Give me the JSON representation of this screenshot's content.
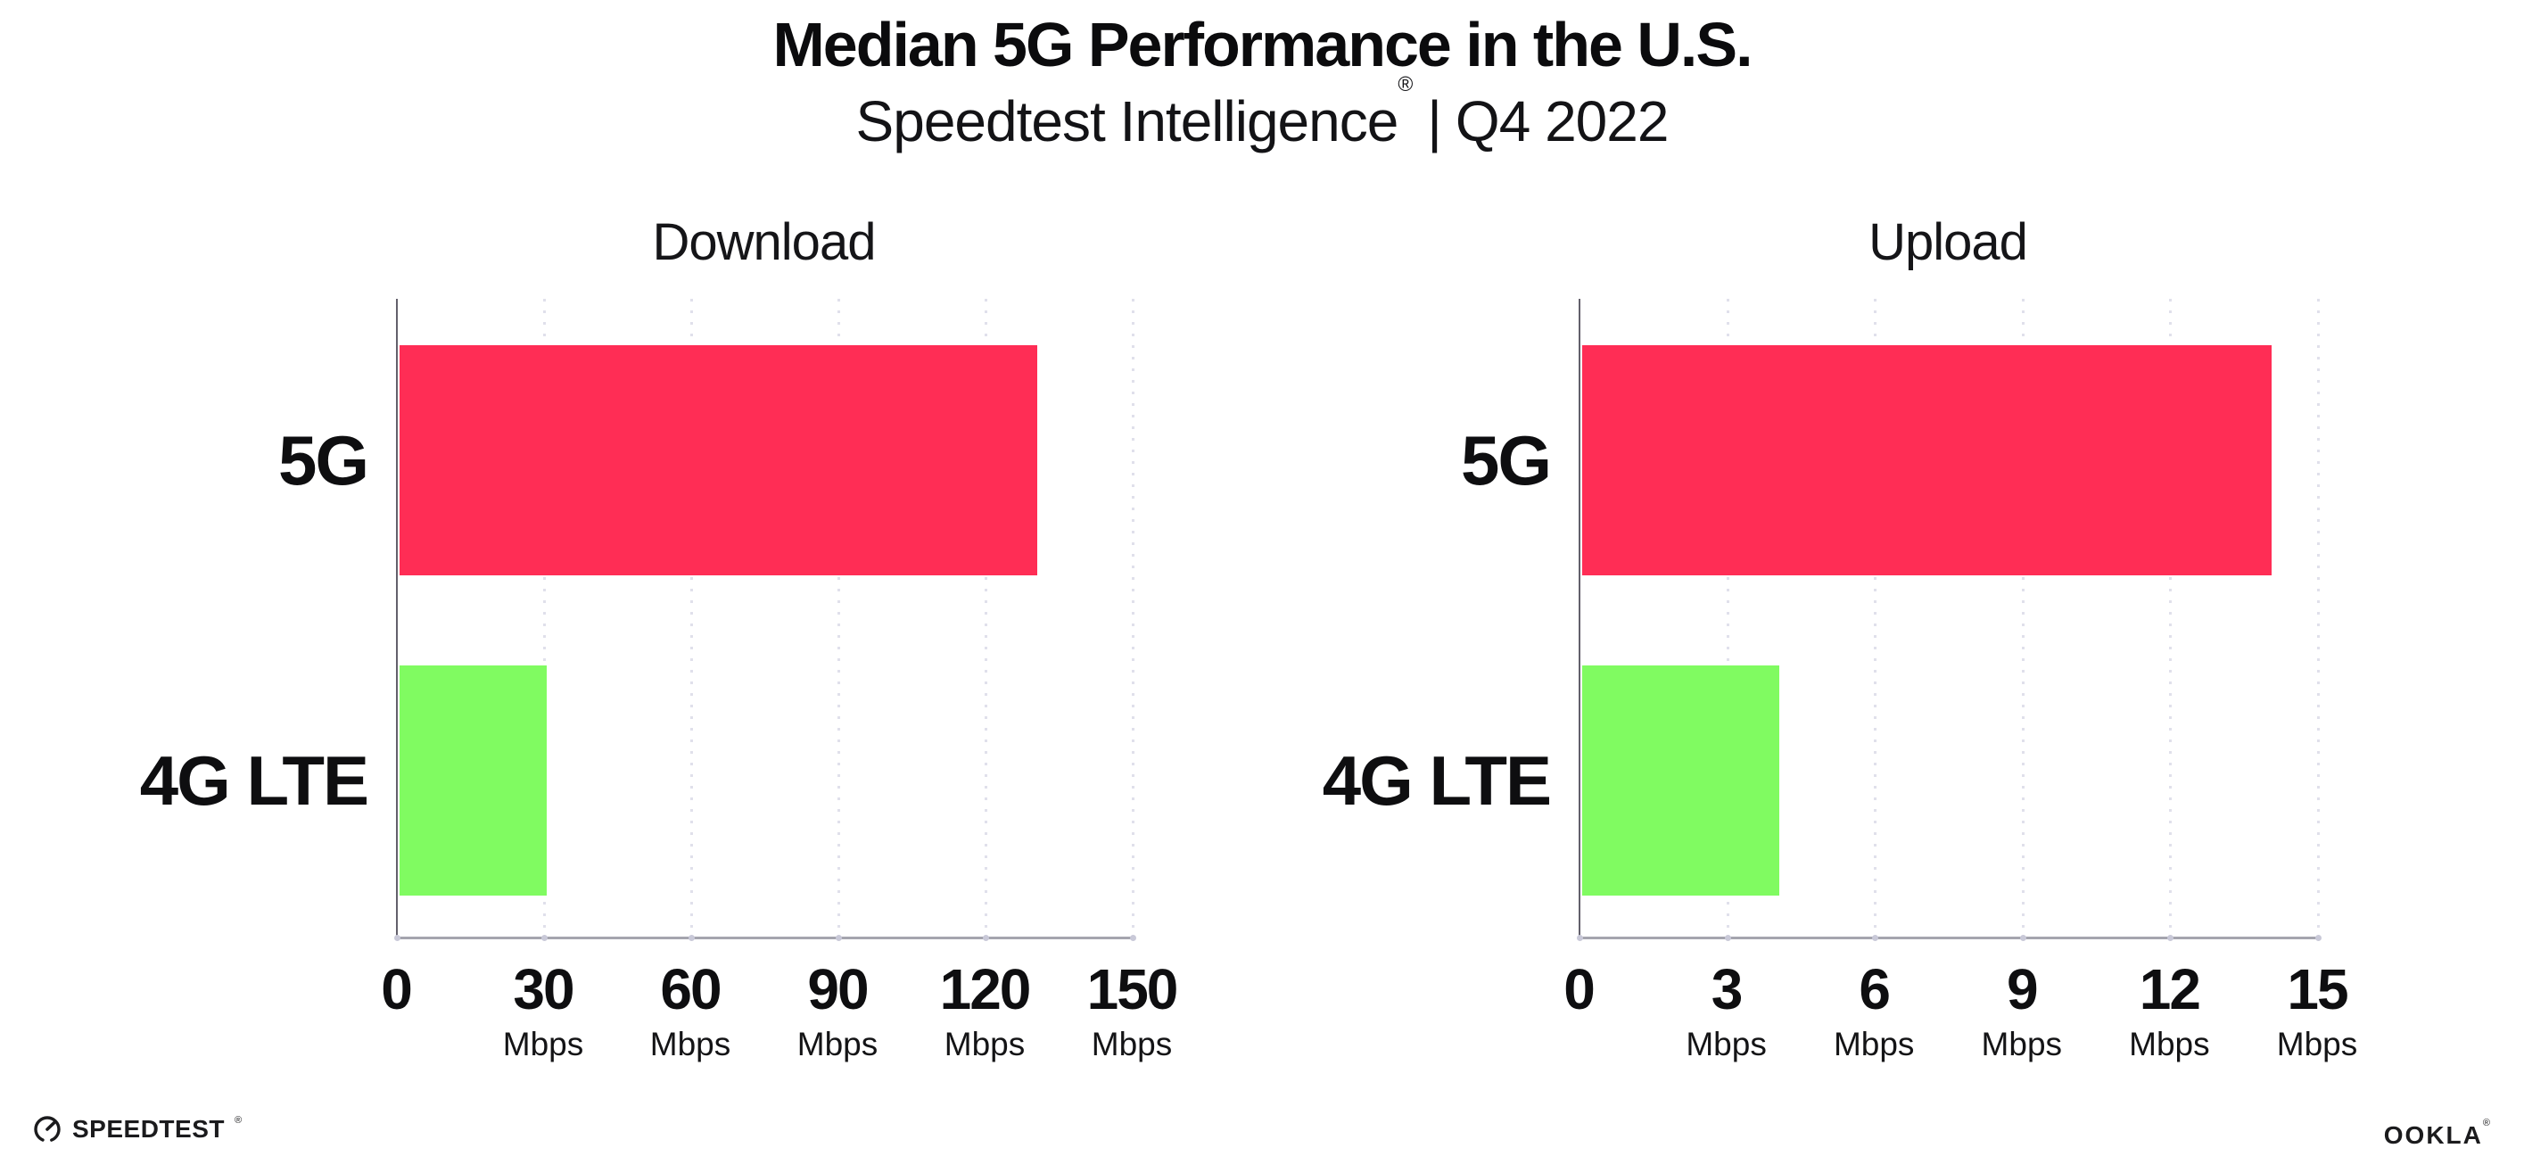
{
  "header": {
    "title": "Median 5G Performance in the U.S.",
    "subtitle_brand": "Speedtest Intelligence",
    "subtitle_registered": "®",
    "subtitle_divider": "|",
    "subtitle_period": "Q4 2022"
  },
  "chart_data": [
    {
      "type": "bar",
      "orientation": "horizontal",
      "title": "Download",
      "categories": [
        "5G",
        "4G LTE"
      ],
      "values": [
        130,
        30
      ],
      "unit": "Mbps",
      "xlim": [
        0,
        150
      ],
      "xticks": [
        0,
        30,
        60,
        90,
        120,
        150
      ],
      "tick_unit_label": "Mbps",
      "bar_colors": [
        "#FF2D55",
        "#80FB61"
      ],
      "grid": "dotted-vertical-at-ticks",
      "legend": "none"
    },
    {
      "type": "bar",
      "orientation": "horizontal",
      "title": "Upload",
      "categories": [
        "5G",
        "4G LTE"
      ],
      "values": [
        14,
        4
      ],
      "unit": "Mbps",
      "xlim": [
        0,
        15
      ],
      "xticks": [
        0,
        3,
        6,
        9,
        12,
        15
      ],
      "tick_unit_label": "Mbps",
      "bar_colors": [
        "#FF2D55",
        "#80FB61"
      ],
      "grid": "dotted-vertical-at-ticks",
      "legend": "none"
    }
  ],
  "footer": {
    "speedtest_label": "SPEEDTEST",
    "speedtest_registered": "®",
    "ookla_label": "OOKLA",
    "ookla_registered": "®"
  },
  "colors": {
    "bar_5g": "#FF2D55",
    "bar_4g_lte": "#80FB61",
    "background": "#FFFFFF",
    "text": "#0E0E10",
    "gridline": "#E0E0EB",
    "axis_left": "#63606B",
    "axis_bottom": "#A5A5AE"
  }
}
